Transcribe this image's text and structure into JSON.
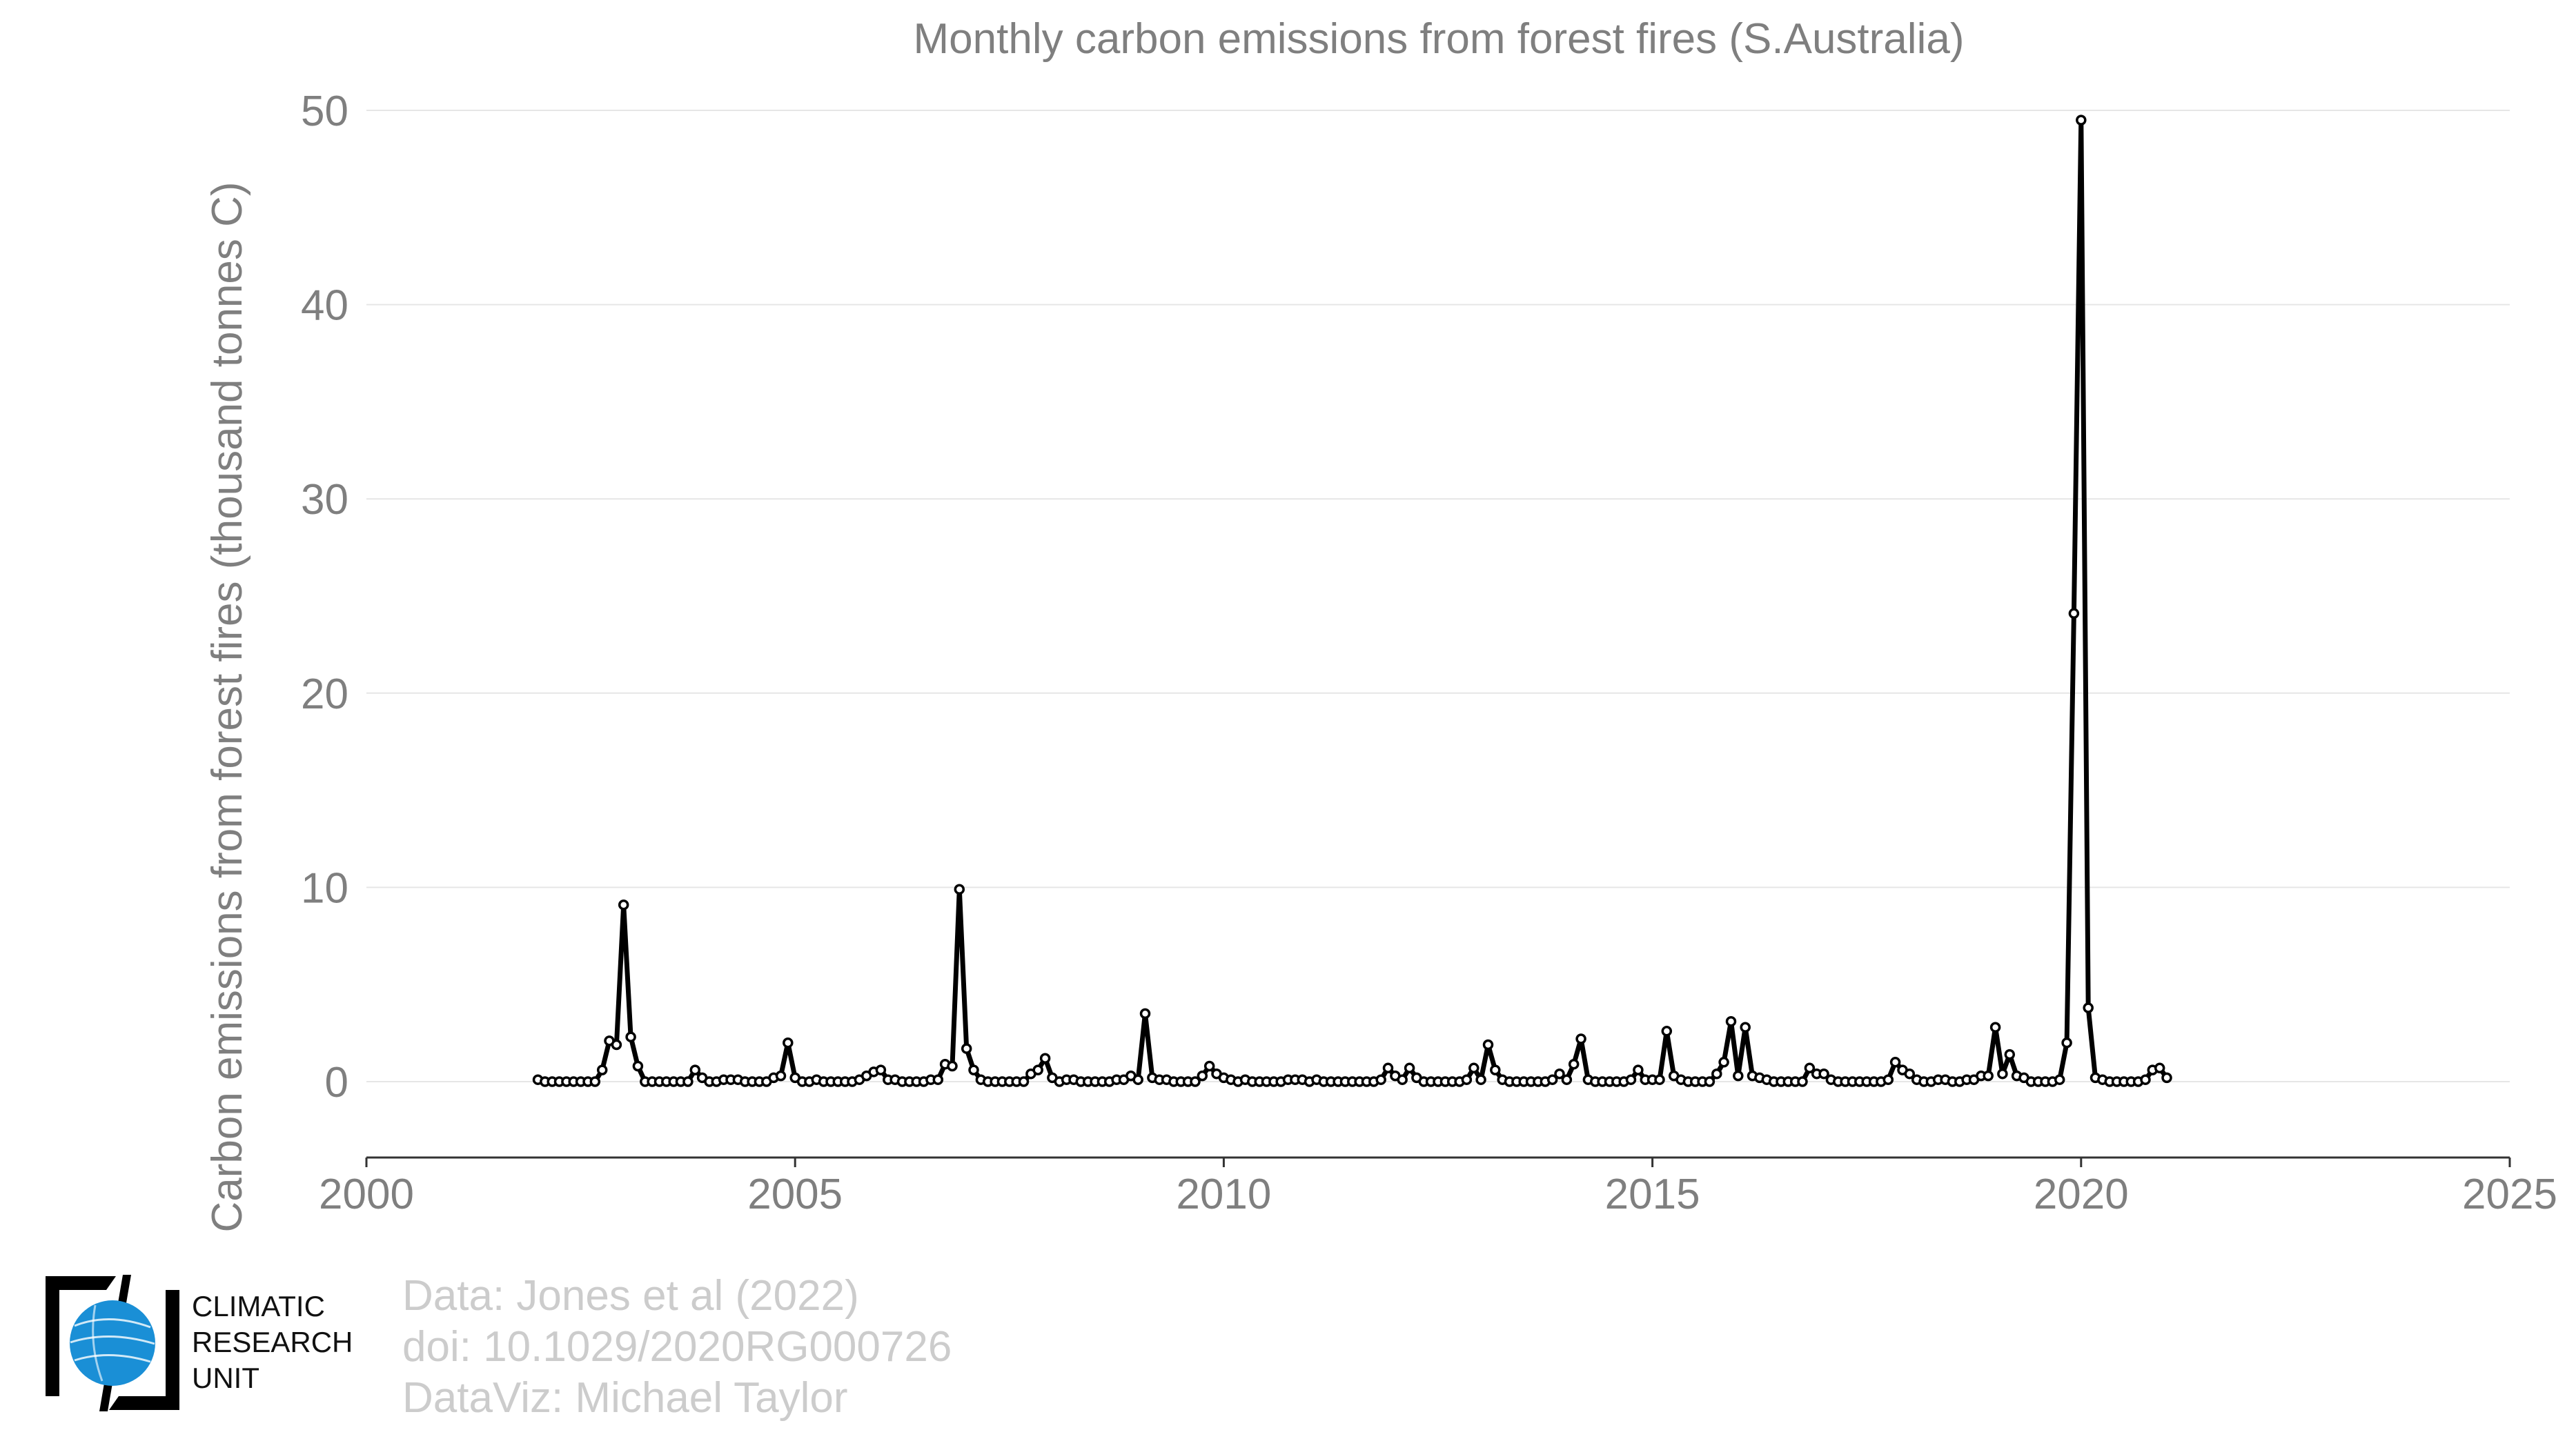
{
  "chart_data": {
    "type": "line",
    "title": "Monthly carbon emissions from forest fires (S.Australia)",
    "xlabel": "",
    "ylabel": "Carbon emissions from forest fires (thousand tonnes C)",
    "xlim": [
      2000,
      2025
    ],
    "ylim": [
      -4,
      50
    ],
    "xticks": [
      "2000",
      "2005",
      "2010",
      "2015",
      "2020",
      "2025"
    ],
    "yticks": [
      "0",
      "10",
      "20",
      "30",
      "40",
      "50"
    ],
    "grid": true,
    "legend": "none",
    "line_color": "#000000",
    "marker": "open-circle",
    "x_start": "2002-01",
    "x_step": "month",
    "series": [
      {
        "values": [
          0.1,
          0,
          0,
          0,
          0,
          0,
          0,
          0,
          0,
          0.6,
          2.1,
          1.9,
          9.1,
          2.3,
          0.8,
          0,
          0,
          0,
          0,
          0,
          0,
          0,
          0.6,
          0.2,
          0,
          0,
          0.1,
          0.1,
          0.1,
          0,
          0,
          0,
          0,
          0.2,
          0.3,
          2.0,
          0.2,
          0,
          0,
          0.1,
          0,
          0,
          0,
          0,
          0,
          0.1,
          0.3,
          0.5,
          0.6,
          0.1,
          0.1,
          0,
          0,
          0,
          0,
          0.1,
          0.1,
          0.9,
          0.8,
          9.9,
          1.7,
          0.6,
          0.1,
          0,
          0,
          0,
          0,
          0,
          0,
          0.4,
          0.6,
          1.2,
          0.2,
          0,
          0.1,
          0.1,
          0,
          0,
          0,
          0,
          0,
          0.1,
          0.1,
          0.3,
          0.1,
          3.5,
          0.2,
          0.1,
          0.1,
          0,
          0,
          0,
          0,
          0.3,
          0.8,
          0.4,
          0.2,
          0.1,
          0,
          0.1,
          0,
          0,
          0,
          0,
          0,
          0.1,
          0.1,
          0.1,
          0,
          0.1,
          0,
          0,
          0,
          0,
          0,
          0,
          0,
          0,
          0.1,
          0.7,
          0.3,
          0.1,
          0.7,
          0.2,
          0,
          0,
          0,
          0,
          0,
          0,
          0.1,
          0.7,
          0.1,
          1.9,
          0.6,
          0.1,
          0,
          0,
          0,
          0,
          0,
          0,
          0.1,
          0.4,
          0.1,
          0.9,
          2.2,
          0.1,
          0,
          0,
          0,
          0,
          0,
          0.1,
          0.6,
          0.1,
          0.1,
          0.1,
          2.6,
          0.3,
          0.1,
          0,
          0,
          0,
          0,
          0.4,
          1.0,
          3.1,
          0.3,
          2.8,
          0.3,
          0.2,
          0.1,
          0,
          0,
          0,
          0,
          0,
          0.7,
          0.4,
          0.4,
          0.1,
          0,
          0,
          0,
          0,
          0,
          0,
          0,
          0.1,
          1.0,
          0.6,
          0.4,
          0.1,
          0,
          0,
          0.1,
          0.1,
          0,
          0,
          0.1,
          0.1,
          0.3,
          0.3,
          2.8,
          0.4,
          1.4,
          0.3,
          0.2,
          0,
          0,
          0,
          0,
          0.1,
          2.0,
          24.1,
          49.5,
          3.8,
          0.2,
          0.1,
          0,
          0,
          0,
          0,
          0,
          0.1,
          0.6,
          0.7,
          0.2
        ]
      }
    ]
  },
  "credits": {
    "line1": "Data: Jones et al (2022)",
    "line2": "doi: 10.1029/2020RG000726",
    "line3": "DataViz: Michael Taylor"
  },
  "logo": {
    "line1": "CLIMATIC",
    "line2": "RESEARCH",
    "line3": "UNIT",
    "globe_color": "#1a8fd6"
  }
}
